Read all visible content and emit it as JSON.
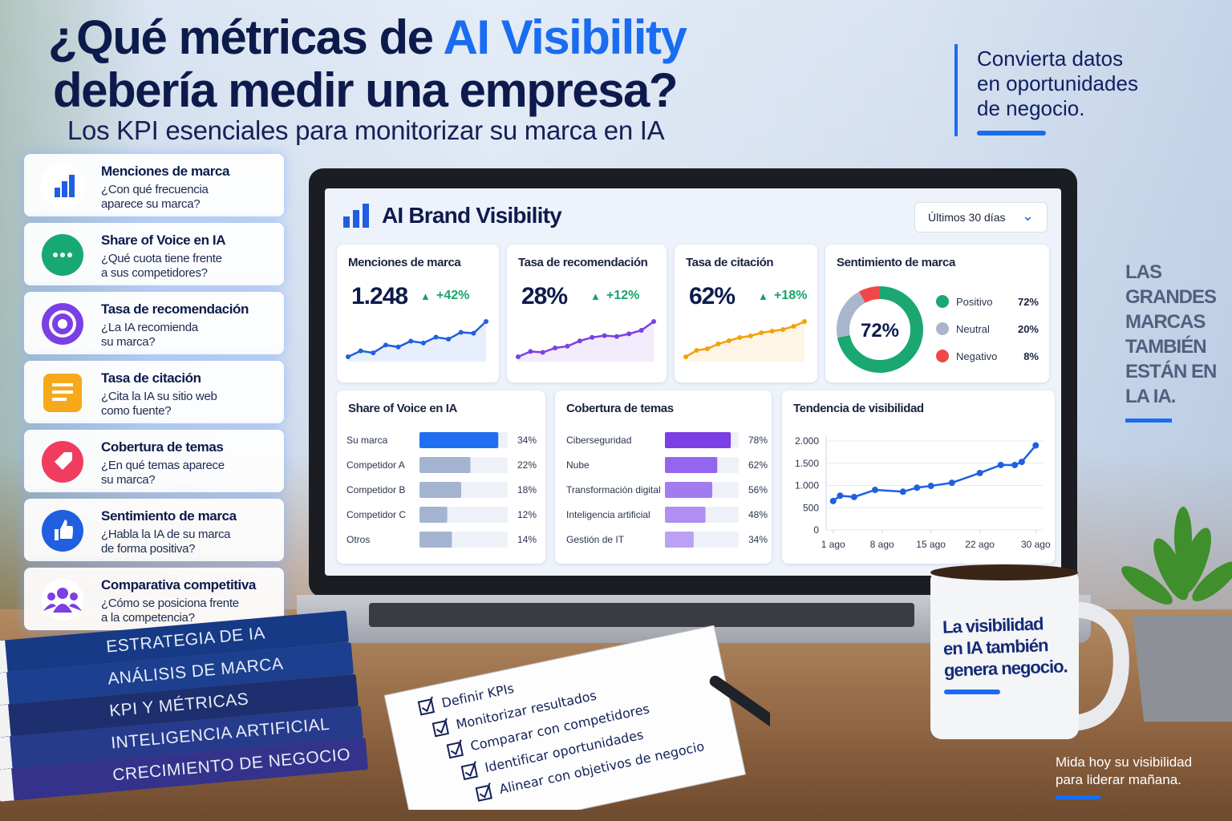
{
  "header": {
    "title_line1": "¿Qué métricas de",
    "title_highlight": "AI Visibility",
    "title_line2": "debería medir una  empresa?",
    "subtitle": "Los KPI esenciales para monitorizar su marca en IA"
  },
  "side_note": {
    "line1": "Convierta datos",
    "line2": "en oportunidades",
    "line3": "de negocio."
  },
  "kpi_list": [
    {
      "title": "Menciones de marca",
      "question1": "¿Con qué frecuencia",
      "question2": "aparece su marca?"
    },
    {
      "title": "Share of Voice en IA",
      "question1": "¿Qué cuota tiene frente",
      "question2": "a sus competidores?"
    },
    {
      "title": "Tasa de recomendación",
      "question1": "¿La IA recomienda",
      "question2": "su marca?"
    },
    {
      "title": "Tasa de citación",
      "question1": "¿Cita la IA su sitio web",
      "question2": "como fuente?"
    },
    {
      "title": "Cobertura de temas",
      "question1": "¿En qué temas aparece",
      "question2": "su marca?"
    },
    {
      "title": "Sentimiento de marca",
      "question1": "¿Habla la IA de su marca",
      "question2": "de forma positiva?"
    },
    {
      "title": "Comparativa competitiva",
      "question1": "¿Cómo se posiciona frente",
      "question2": "a la competencia?"
    }
  ],
  "dashboard": {
    "title": "AI Brand Visibility",
    "period": "Últimos 30 días",
    "metric_cards": [
      {
        "label": "Menciones de marca",
        "value": "1.248",
        "change": "+42%",
        "color": "#1f5fe0",
        "sparkline": [
          30,
          36,
          34,
          42,
          40,
          46,
          44,
          50,
          48,
          55,
          54,
          66
        ]
      },
      {
        "label": "Tasa de recomendación",
        "value": "28%",
        "change": "+12%",
        "color": "#7b3fe4",
        "sparkline": [
          28,
          34,
          33,
          38,
          40,
          46,
          50,
          52,
          51,
          54,
          58,
          68
        ]
      },
      {
        "label": "Tasa de citación",
        "value": "62%",
        "change": "+18%",
        "color": "#f2a10c",
        "sparkline": [
          26,
          34,
          36,
          42,
          46,
          50,
          52,
          56,
          58,
          60,
          64,
          70
        ]
      }
    ],
    "sentiment": {
      "title": "Sentimiento de marca",
      "center_label": "72%",
      "categories": [
        "Positivo",
        "Neutral",
        "Negativo"
      ],
      "values": [
        72,
        20,
        8
      ],
      "value_labels": [
        "72%",
        "20%",
        "8%"
      ],
      "colors": [
        "#1aa772",
        "#a9b6cc",
        "#f04848"
      ]
    },
    "share_of_voice": {
      "title": "Share of Voice en IA",
      "categories": [
        "Su marca",
        "Competidor A",
        "Competidor B",
        "Competidor C",
        "Otros"
      ],
      "values": [
        34,
        22,
        18,
        12,
        14
      ],
      "value_labels": [
        "34%",
        "22%",
        "18%",
        "12%",
        "14%"
      ],
      "colors": [
        "#1f6ff0",
        "#a4b4d0",
        "#a4b4d0",
        "#a4b4d0",
        "#a4b4d0"
      ]
    },
    "topics": {
      "title": "Cobertura de temas",
      "categories": [
        "Ciberseguridad",
        "Nube",
        "Transformación digital",
        "Inteligencia artificial",
        "Gestión de IT"
      ],
      "values": [
        78,
        62,
        56,
        48,
        34
      ],
      "value_labels": [
        "78%",
        "62%",
        "56%",
        "48%",
        "34%"
      ],
      "colors": [
        "#7b3fe4",
        "#9466ee",
        "#a37bf0",
        "#b08ef2",
        "#bca0f4"
      ]
    },
    "trend": {
      "type": "line",
      "title": "Tendencia de visibilidad",
      "x": [
        1,
        2,
        4,
        7,
        11,
        13,
        15,
        18,
        22,
        25,
        27,
        28,
        30
      ],
      "values": [
        650,
        770,
        740,
        900,
        860,
        950,
        990,
        1060,
        1280,
        1460,
        1460,
        1530,
        1900
      ],
      "color": "#1f5fe0",
      "xlim": [
        0,
        31
      ],
      "xticks": [
        {
          "value": 1,
          "label": "1 ago"
        },
        {
          "value": 8,
          "label": "8 ago"
        },
        {
          "value": 15,
          "label": "15 ago"
        },
        {
          "value": 22,
          "label": "22 ago"
        },
        {
          "value": 30,
          "label": "30 ago"
        }
      ],
      "ylim": [
        0,
        2000
      ],
      "yticks": [
        0,
        500,
        {
          "value": 1000,
          "label": "1.000"
        },
        {
          "value": 1500,
          "label": "1.500"
        },
        {
          "value": 2000,
          "label": "2.000"
        }
      ]
    }
  },
  "right_slogan": {
    "line1": "LAS",
    "line2": "GRANDES",
    "line3": "MARCAS",
    "line4": "TAMBIÉN",
    "line5": "ESTÁN EN",
    "line6": "LA IA."
  },
  "mug": {
    "line1": "La visibilidad",
    "line2": "en IA también",
    "line3": "genera negocio."
  },
  "books": [
    "ESTRATEGIA DE IA",
    "ANÁLISIS DE MARCA",
    "KPI Y MÉTRICAS",
    "INTELIGENCIA ARTIFICIAL",
    "CRECIMIENTO DE NEGOCIO"
  ],
  "checklist": [
    "Definir KPIs",
    "Monitorizar resultados",
    "Comparar con competidores",
    "Identificar oportunidades",
    "Alinear con objetivos de negocio"
  ],
  "footer": {
    "line1": "Mida hoy su visibilidad",
    "line2": "para liderar mañana."
  }
}
